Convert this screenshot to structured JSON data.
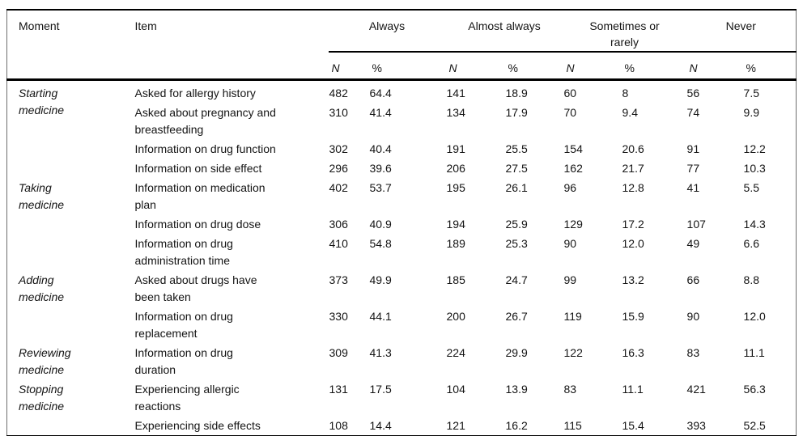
{
  "table": {
    "header": {
      "moment": "Moment",
      "item": "Item",
      "groups": [
        "Always",
        "Almost always",
        "Sometimes or\nrarely",
        "Never"
      ],
      "n": "N",
      "pct": "%"
    },
    "rows": [
      {
        "moment": "Starting\nmedicine",
        "item": "Asked for allergy history",
        "v": [
          "482",
          "64.4",
          "141",
          "18.9",
          "60",
          "8",
          "56",
          "7.5"
        ]
      },
      {
        "item": "Asked about pregnancy and\nbreastfeeding",
        "v": [
          "310",
          "41.4",
          "134",
          "17.9",
          "70",
          "9.4",
          "74",
          "9.9"
        ]
      },
      {
        "item": "Information on drug function",
        "v": [
          "302",
          "40.4",
          "191",
          "25.5",
          "154",
          "20.6",
          "91",
          "12.2"
        ]
      },
      {
        "item": "Information on side effect",
        "v": [
          "296",
          "39.6",
          "206",
          "27.5",
          "162",
          "21.7",
          "77",
          "10.3"
        ]
      },
      {
        "moment": "Taking\nmedicine",
        "item": "Information on medication\nplan",
        "v": [
          "402",
          "53.7",
          "195",
          "26.1",
          "96",
          "12.8",
          "41",
          "5.5"
        ]
      },
      {
        "item": "Information on drug dose",
        "v": [
          "306",
          "40.9",
          "194",
          "25.9",
          "129",
          "17.2",
          "107",
          "14.3"
        ]
      },
      {
        "item": "Information on drug\nadministration time",
        "v": [
          "410",
          "54.8",
          "189",
          "25.3",
          "90",
          "12.0",
          "49",
          "6.6"
        ]
      },
      {
        "moment": "Adding\nmedicine",
        "item": "Asked about drugs have\nbeen taken",
        "v": [
          "373",
          "49.9",
          "185",
          "24.7",
          "99",
          "13.2",
          "66",
          "8.8"
        ]
      },
      {
        "item": "Information on drug\nreplacement",
        "v": [
          "330",
          "44.1",
          "200",
          "26.7",
          "119",
          "15.9",
          "90",
          "12.0"
        ]
      },
      {
        "moment": "Reviewing\nmedicine",
        "item": "Information on drug\nduration",
        "v": [
          "309",
          "41.3",
          "224",
          "29.9",
          "122",
          "16.3",
          "83",
          "11.1"
        ]
      },
      {
        "moment": "Stopping\nmedicine",
        "item": "Experiencing allergic\nreactions",
        "v": [
          "131",
          "17.5",
          "104",
          "13.9",
          "83",
          "11.1",
          "421",
          "56.3"
        ]
      },
      {
        "item": "Experiencing side effects",
        "v": [
          "108",
          "14.4",
          "121",
          "16.2",
          "115",
          "15.4",
          "393",
          "52.5"
        ]
      }
    ]
  }
}
